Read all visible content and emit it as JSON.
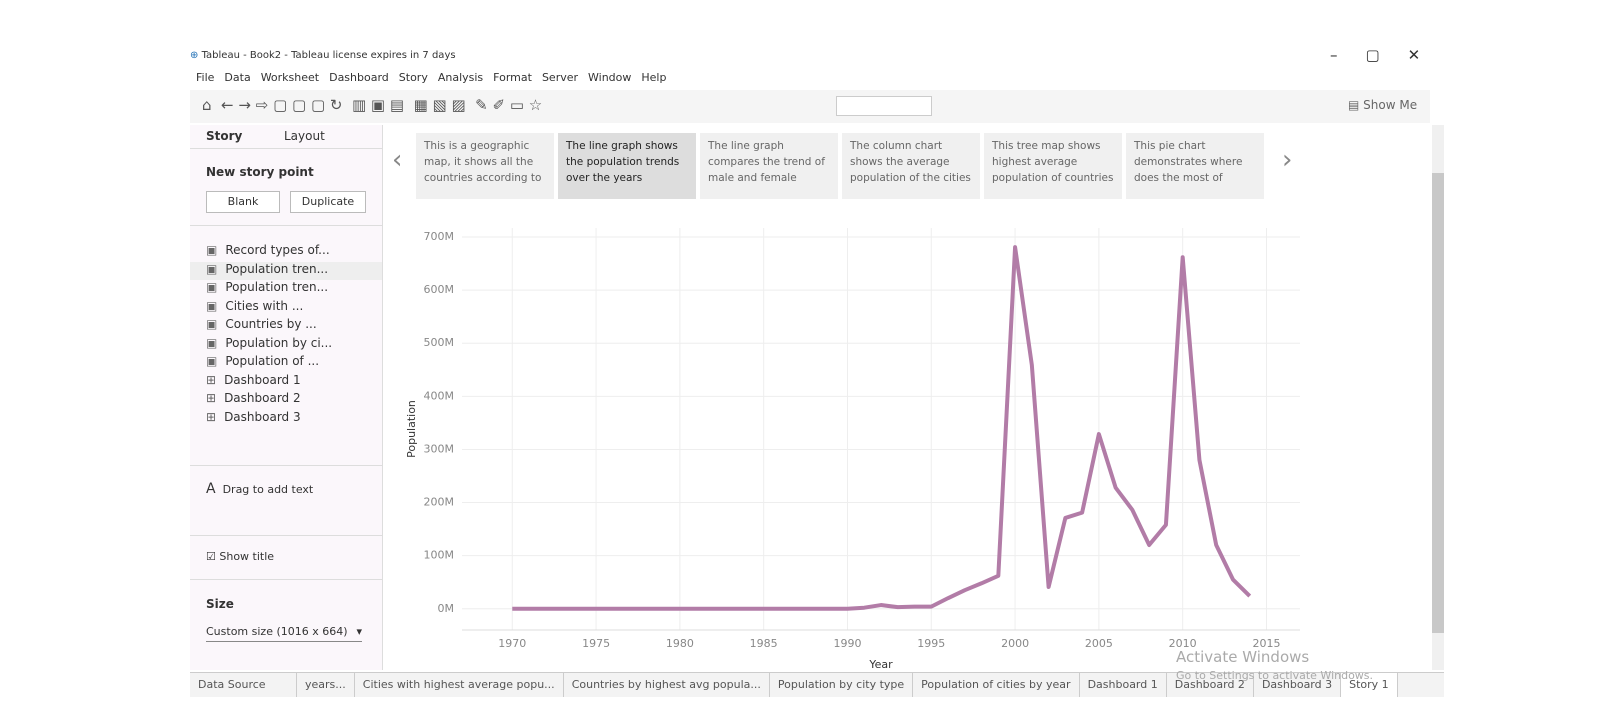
{
  "window": {
    "title": "Tableau - Book2 - Tableau license expires in 7 days"
  },
  "menu": [
    "File",
    "Data",
    "Worksheet",
    "Dashboard",
    "Story",
    "Analysis",
    "Format",
    "Server",
    "Window",
    "Help"
  ],
  "toolbar": {
    "show_me": "Show Me"
  },
  "sidebar": {
    "tabs": [
      "Story",
      "Layout"
    ],
    "new_story_point": "New story point",
    "buttons": [
      "Blank",
      "Duplicate"
    ],
    "sheets": [
      "Record types of...",
      "Population tren...",
      "Population tren...",
      "Cities with ...",
      "Countries by ...",
      "Population by ci...",
      "Population of ...",
      "Dashboard 1",
      "Dashboard 2",
      "Dashboard 3"
    ],
    "drag_text": "Drag to add text",
    "show_title": "Show title",
    "size_label": "Size",
    "size_value": "Custom size (1016 x 664)"
  },
  "story_points": [
    "This is a geographic map, it shows all the countries according to",
    "The line graph shows the population trends over the years",
    "The line graph compares the trend of male and female",
    "The column chart shows the average population of the cities",
    "This tree map shows highest average population of countries",
    "This pie chart demonstrates where does the most of"
  ],
  "chart_data": {
    "type": "line",
    "x_label": "Year",
    "y_label": "Population",
    "color": "#b27ca7",
    "grid": true,
    "x": [
      1970,
      1971,
      1972,
      1973,
      1974,
      1975,
      1976,
      1977,
      1978,
      1979,
      1980,
      1981,
      1982,
      1983,
      1984,
      1985,
      1986,
      1987,
      1988,
      1989,
      1990,
      1991,
      1992,
      1993,
      1994,
      1995,
      1996,
      1997,
      1998,
      1999,
      2000,
      2001,
      2002,
      2003,
      2004,
      2005,
      2006,
      2007,
      2008,
      2009,
      2010,
      2011,
      2012,
      2013,
      2014
    ],
    "values": [
      0,
      0,
      0,
      0,
      0,
      0,
      0,
      0,
      0,
      0,
      0,
      0,
      0,
      0,
      0,
      0,
      0,
      0,
      0,
      0,
      0,
      2000000,
      7000000,
      3000000,
      4000000,
      4000000,
      20000000,
      35000000,
      48000000,
      62000000,
      681000000,
      459000000,
      41000000,
      171000000,
      181000000,
      329000000,
      228000000,
      186000000,
      120000000,
      158000000,
      662000000,
      280000000,
      120000000,
      55000000,
      24000000
    ],
    "xlim": [
      1967,
      2017
    ],
    "ylim": [
      -40000000,
      717000000
    ],
    "xticks": [
      1970,
      1975,
      1980,
      1985,
      1990,
      1995,
      2000,
      2005,
      2010,
      2015
    ],
    "yticks": [
      {
        "value": 0,
        "label": "0M"
      },
      {
        "value": 100000000,
        "label": "100M"
      },
      {
        "value": 200000000,
        "label": "200M"
      },
      {
        "value": 300000000,
        "label": "300M"
      },
      {
        "value": 400000000,
        "label": "400M"
      },
      {
        "value": 500000000,
        "label": "500M"
      },
      {
        "value": 600000000,
        "label": "600M"
      },
      {
        "value": 700000000,
        "label": "700M"
      }
    ]
  },
  "tabs": [
    "Data Source",
    "years...",
    "Cities with highest average popu...",
    "Countries by highest avg popula...",
    "Population by city type",
    "Population of cities by year",
    "Dashboard 1",
    "Dashboard 2",
    "Dashboard 3",
    "Story 1"
  ],
  "watermark": {
    "title": "Activate Windows",
    "subtitle": "Go to Settings to activate Windows."
  }
}
